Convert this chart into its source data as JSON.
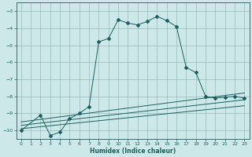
{
  "xlabel": "Humidex (Indice chaleur)",
  "bg_color": "#cce8e8",
  "grid_color": "#99bbbb",
  "line_color": "#1a6060",
  "xlim": [
    -0.5,
    23.5
  ],
  "ylim": [
    -10.5,
    -2.5
  ],
  "yticks": [
    -10,
    -9,
    -8,
    -7,
    -6,
    -5,
    -4,
    -3
  ],
  "xticks": [
    0,
    1,
    2,
    3,
    4,
    5,
    6,
    7,
    8,
    9,
    10,
    11,
    12,
    13,
    14,
    15,
    16,
    17,
    18,
    19,
    20,
    21,
    22,
    23
  ],
  "lines": [
    {
      "x": [
        0,
        2,
        3,
        4,
        5,
        6,
        7,
        8,
        9,
        10,
        11,
        12,
        13,
        14,
        15,
        16,
        17,
        18,
        19,
        20,
        21,
        22,
        23
      ],
      "y": [
        -10.0,
        -9.1,
        -10.3,
        -10.1,
        -9.3,
        -9.0,
        -8.6,
        -4.8,
        -4.6,
        -3.5,
        -3.7,
        -3.8,
        -3.6,
        -3.3,
        -3.55,
        -3.9,
        -6.3,
        -6.6,
        -8.0,
        -8.1,
        -8.05,
        -8.0,
        -8.1
      ],
      "has_marker": true
    },
    {
      "x": [
        0,
        23
      ],
      "y": [
        -9.5,
        -7.8
      ],
      "has_marker": false
    },
    {
      "x": [
        0,
        23
      ],
      "y": [
        -9.7,
        -8.2
      ],
      "has_marker": false
    },
    {
      "x": [
        0,
        23
      ],
      "y": [
        -9.9,
        -8.55
      ],
      "has_marker": false
    }
  ]
}
